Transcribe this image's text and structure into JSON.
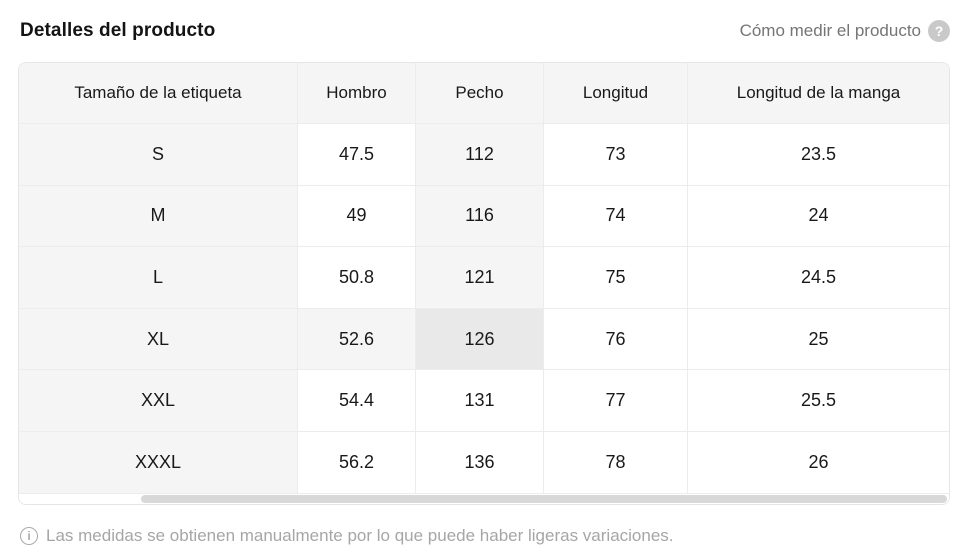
{
  "page": {
    "title": "Detalles del producto",
    "measure_link": "Cómo medir el producto",
    "footer_note": "Las medidas se obtienen manualmente por lo que puede haber ligeras variaciones."
  },
  "icons": {
    "help": "?",
    "info": "i"
  },
  "table": {
    "columns": [
      "Tamaño de la etiqueta",
      "Hombro",
      "Pecho",
      "Longitud",
      "Longitud de la manga"
    ],
    "rows": [
      {
        "size": "S",
        "values": [
          "47.5",
          "112",
          "73",
          "23.5"
        ]
      },
      {
        "size": "M",
        "values": [
          "49",
          "116",
          "74",
          "24"
        ]
      },
      {
        "size": "L",
        "values": [
          "50.8",
          "121",
          "75",
          "24.5"
        ]
      },
      {
        "size": "XL",
        "values": [
          "52.6",
          "126",
          "76",
          "25"
        ]
      },
      {
        "size": "XXL",
        "values": [
          "54.4",
          "131",
          "77",
          "25.5"
        ]
      },
      {
        "size": "XXXL",
        "values": [
          "56.2",
          "136",
          "78",
          "26"
        ]
      }
    ],
    "highlight": {
      "row": 3,
      "col": 2
    },
    "colors": {
      "header_bg": "#f5f5f6",
      "trail": "#f5f5f6",
      "cross": "#e9e9ea",
      "border_outer": "#e6e6e6",
      "border_inner": "#ececec",
      "scroll_thumb": "#d8d8d8"
    }
  }
}
